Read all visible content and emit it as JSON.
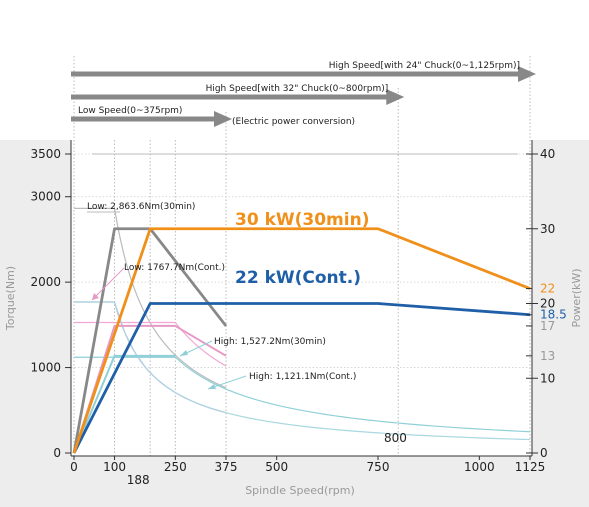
{
  "chart_data": {
    "type": "line",
    "xlabel": "Spindle Speed(rpm)",
    "ylabel_left": "Torque(Nm)",
    "ylabel_right": "Power(kW)",
    "xlim": [
      0,
      1125
    ],
    "ylim_left": [
      0,
      3500
    ],
    "ylim_right": [
      0,
      40
    ],
    "x_ticks": [
      "0",
      "100",
      "250",
      "375",
      "500",
      "750",
      "1000",
      "1125"
    ],
    "x_tick_values": [
      0,
      100,
      250,
      375,
      500,
      750,
      1000,
      1125
    ],
    "x_extra_tick": {
      "label": "188",
      "value": 188
    },
    "y_left_ticks": [
      "0",
      "1000",
      "2000",
      "3000",
      "3500"
    ],
    "y_left_tick_values": [
      0,
      1000,
      2000,
      3000,
      3500
    ],
    "y_right_ticks": [
      {
        "label": "0",
        "value": 0,
        "color": "#222222"
      },
      {
        "label": "10",
        "value": 10,
        "color": "#222222"
      },
      {
        "label": "13",
        "value": 13,
        "color": "#999999"
      },
      {
        "label": "17",
        "value": 17,
        "color": "#999999"
      },
      {
        "label": "18.5",
        "value": 18.5,
        "color": "#1f5fa8"
      },
      {
        "label": "20",
        "value": 20,
        "color": "#222222"
      },
      {
        "label": "22",
        "value": 22,
        "color": "#f0901a"
      },
      {
        "label": "30",
        "value": 30,
        "color": "#222222"
      },
      {
        "label": "40",
        "value": 40,
        "color": "#222222"
      }
    ],
    "speed_ranges": [
      {
        "label": "High Speed[with 24\" Chuck(0~1,125rpm)]",
        "end_rpm": 1125
      },
      {
        "label": "High Speed[with 32\" Chuck(0~800rpm)]",
        "end_rpm": 800
      },
      {
        "label": "Low Speed(0~375rpm)",
        "end_rpm": 375
      }
    ],
    "range_note": "(Electric power conversion)",
    "extra_label": "800",
    "series": [
      {
        "name": "30 kW(30min)",
        "axis": "right",
        "color": "#f0901a",
        "x": [
          0,
          188,
          750,
          1125
        ],
        "y": [
          0,
          30,
          30,
          22
        ]
      },
      {
        "name": "22 kW(Cont.)",
        "axis": "right",
        "color": "#1f5fa8",
        "x": [
          0,
          188,
          750,
          1125
        ],
        "y": [
          0,
          20,
          20,
          18.5
        ]
      },
      {
        "axis": "right",
        "color": "#888888",
        "x": [
          0,
          100,
          188,
          375
        ],
        "y": [
          0,
          30,
          30,
          17
        ]
      },
      {
        "axis": "right",
        "color": "#e59ac6",
        "x": [
          0,
          100,
          250,
          375
        ],
        "y": [
          0,
          17,
          17,
          13
        ]
      },
      {
        "axis": "right",
        "color": "#8fd0d8",
        "x": [
          0,
          100,
          250
        ],
        "y": [
          0,
          13,
          13
        ]
      }
    ],
    "torque_curves": [
      {
        "color": "#bbbbbb",
        "flat": 2863.6,
        "knee": 100,
        "end": 375
      },
      {
        "color": "#c79ad8",
        "flat": 1767.7,
        "knee": 100,
        "end": 375
      },
      {
        "color": "#f2a8d4",
        "flat": 1527.2,
        "knee": 250,
        "end": 375
      },
      {
        "color": "#8fd0d8",
        "flat": 1121.1,
        "knee": 250,
        "end": 1125
      },
      {
        "color": "#a8d8e0",
        "flat": 1767.7,
        "knee": 100,
        "end": 1125
      }
    ],
    "annotations": [
      {
        "text": "Low: 2,863.6Nm(30min)"
      },
      {
        "text": "Low: 1767.7Nm(Cont.)"
      },
      {
        "text": "High: 1,527.2Nm(30min)"
      },
      {
        "text": "High: 1,121.1Nm(Cont.)"
      }
    ]
  }
}
